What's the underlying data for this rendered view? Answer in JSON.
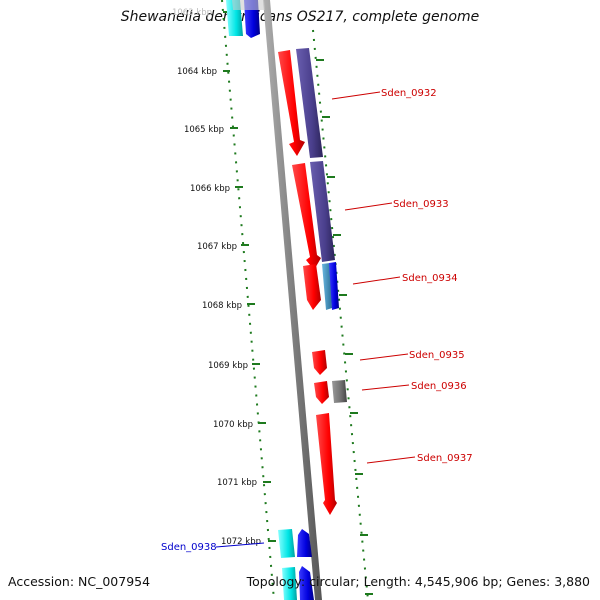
{
  "title": "Shewanella denitrificans OS217, complete genome",
  "footer": {
    "accession": "Accession: NC_007954",
    "topology": "Topology: circular; Length: 4,545,906 bp; Genes: 3,880"
  },
  "colors": {
    "backbone": "#808080",
    "ruler_dots": "#1e7a1e",
    "gene_red": "#ff0000",
    "gene_purple": "#4a3f8c",
    "gene_blue": "#0000dd",
    "gene_cyan": "#00e5e5",
    "gene_teal": "#3a8fb8",
    "gene_gray": "#707070",
    "label_red": "#cc0000",
    "label_blue": "#0000cc"
  },
  "ruler": {
    "ticks": [
      "1063 kbp",
      "1064 kbp",
      "1065 kbp",
      "1066 kbp",
      "1067 kbp",
      "1068 kbp",
      "1069 kbp",
      "1070 kbp",
      "1071 kbp",
      "1072 kbp"
    ]
  },
  "genes": [
    {
      "label": "Sden_0932",
      "color": "label_red"
    },
    {
      "label": "Sden_0933",
      "color": "label_red"
    },
    {
      "label": "Sden_0934",
      "color": "label_red"
    },
    {
      "label": "Sden_0935",
      "color": "label_red"
    },
    {
      "label": "Sden_0936",
      "color": "label_red"
    },
    {
      "label": "Sden_0937",
      "color": "label_red"
    },
    {
      "label": "Sden_0938",
      "color": "label_blue"
    }
  ]
}
